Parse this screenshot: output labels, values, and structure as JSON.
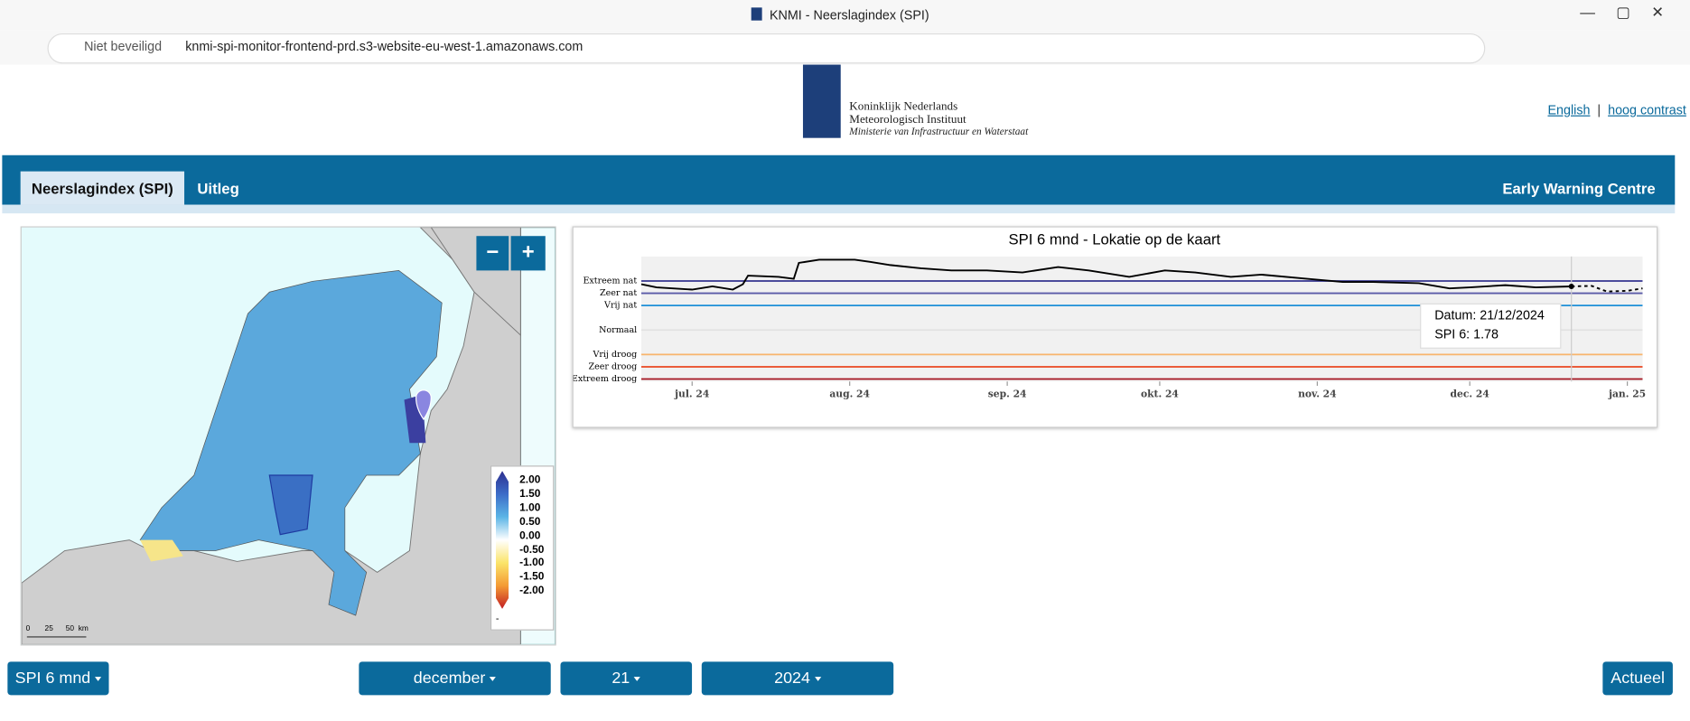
{
  "browser": {
    "tab_title": "KNMI - Neerslagindex (SPI)",
    "security": "Niet beveiligd",
    "url": "knmi-spi-monitor-frontend-prd.s3-website-eu-west-1.amazonaws.com"
  },
  "header": {
    "logo_lines": [
      "Koninklijk Nederlands",
      "Meteorologisch Instituut",
      "Ministerie van Infrastructuur en Waterstaat"
    ],
    "links": [
      "English",
      "|",
      "hoog contrast"
    ]
  },
  "nav": {
    "tabs": [
      "Neerslagindex (SPI)",
      "Uitleg"
    ],
    "right": "Early Warning Centre"
  },
  "map": {
    "zoom": [
      "−",
      "+"
    ],
    "legend": [
      "2.00",
      "1.50",
      "1.00",
      "0.50",
      "0.00",
      "-0.50",
      "-1.00",
      "-1.50",
      "-2.00"
    ],
    "legend_foot": "-",
    "scale": [
      "0",
      "25",
      "50",
      "km"
    ]
  },
  "chart": {
    "type": "line",
    "title": "SPI 6 mnd - Lokatie op de kaart",
    "xlim": [
      "2024-06-21",
      "2025-01-04"
    ],
    "xticks": [
      {
        "value": "2024-07-01",
        "label": "jul. 24"
      },
      {
        "value": "2024-08-01",
        "label": "aug. 24"
      },
      {
        "value": "2024-09-01",
        "label": "sep. 24"
      },
      {
        "value": "2024-10-01",
        "label": "okt. 24"
      },
      {
        "value": "2024-11-01",
        "label": "nov. 24"
      },
      {
        "value": "2024-12-01",
        "label": "dec. 24"
      },
      {
        "value": "2025-01-01",
        "label": "jan. 25"
      }
    ],
    "ylim": [
      -2.1,
      3
    ],
    "levels": [
      {
        "label": "Extreem nat",
        "value": 2,
        "color": "#35358f"
      },
      {
        "label": "Zeer nat",
        "value": 1.5,
        "color": "#5a5aa8"
      },
      {
        "label": "Vrij nat",
        "value": 1,
        "color": "#1f8fd8"
      },
      {
        "label": "Normaal",
        "value": 0,
        "color": "#e2e2e2"
      },
      {
        "label": "Vrij droog",
        "value": -1,
        "color": "#f8b46c"
      },
      {
        "label": "Zeer droog",
        "value": -1.5,
        "color": "#e9471f"
      },
      {
        "label": "Extreem droog",
        "value": -2,
        "color": "#a3131f"
      }
    ],
    "series": [
      {
        "color": "#000000",
        "dash": false,
        "x": [
          "2024-06-21",
          "2024-06-24",
          "2024-07-01",
          "2024-07-05",
          "2024-07-09",
          "2024-07-11",
          "2024-07-12",
          "2024-07-18",
          "2024-07-21",
          "2024-07-22",
          "2024-07-26",
          "2024-08-02",
          "2024-08-05",
          "2024-08-09",
          "2024-08-15",
          "2024-08-21",
          "2024-08-28",
          "2024-09-04",
          "2024-09-11",
          "2024-09-17",
          "2024-09-25",
          "2024-10-02",
          "2024-10-08",
          "2024-10-15",
          "2024-10-21",
          "2024-10-30",
          "2024-11-06",
          "2024-11-12",
          "2024-11-21",
          "2024-11-27",
          "2024-12-01",
          "2024-12-08",
          "2024-12-14",
          "2024-12-21"
        ],
        "values": [
          1.87,
          1.74,
          1.65,
          1.78,
          1.65,
          1.87,
          2.22,
          2.17,
          2.09,
          2.74,
          2.87,
          2.87,
          2.78,
          2.65,
          2.52,
          2.43,
          2.43,
          2.35,
          2.57,
          2.43,
          2.17,
          2.43,
          2.35,
          2.17,
          2.26,
          2.09,
          1.96,
          1.96,
          1.91,
          1.7,
          1.74,
          1.83,
          1.74,
          1.78
        ]
      },
      {
        "color": "#000000",
        "dash": true,
        "x": [
          "2024-12-21",
          "2024-12-25",
          "2024-12-28",
          "2025-01-01",
          "2025-01-04"
        ],
        "values": [
          1.78,
          1.8,
          1.57,
          1.6,
          1.7
        ]
      }
    ],
    "tooltip": [
      "Datum: 21/12/2024",
      "SPI 6: 1.78"
    ]
  },
  "controls": {
    "buttons": [
      "SPI 6 mnd",
      "december",
      "21",
      "2024",
      "Actueel"
    ]
  }
}
